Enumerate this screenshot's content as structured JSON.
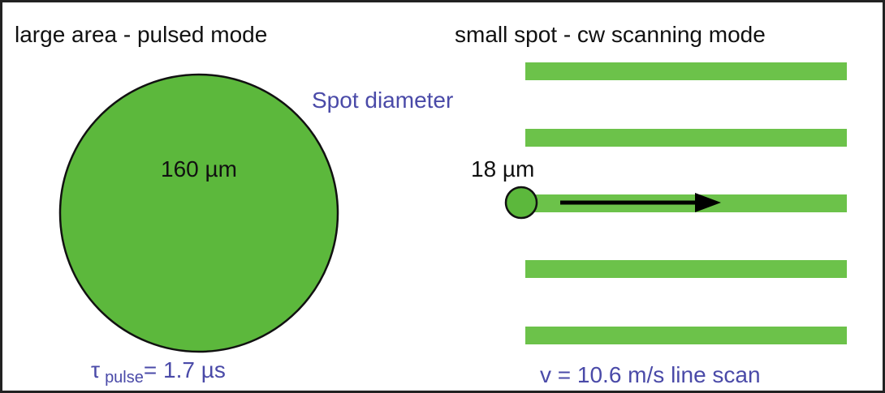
{
  "left": {
    "title": "large area - pulsed mode",
    "diameter": "160 µm",
    "pulse": {
      "symbol": "τ",
      "subscript": "pulse",
      "value": "= 1.7 µs"
    }
  },
  "right": {
    "title": "small spot - cw scanning mode",
    "diameter": "18 µm",
    "scan": "v = 10.6 m/s line scan"
  },
  "spot_label": "Spot diameter"
}
